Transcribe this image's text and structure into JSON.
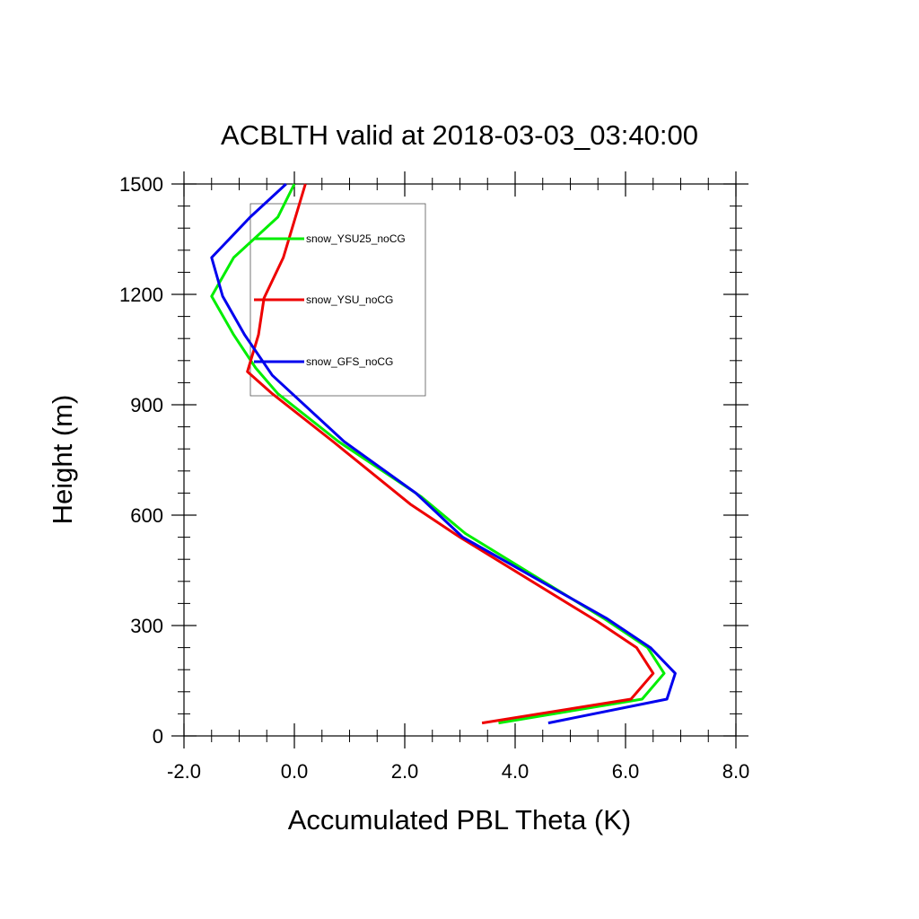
{
  "chart_data": {
    "type": "line",
    "title": "ACBLTH valid at 2018-03-03_03:40:00",
    "xlabel": "Accumulated PBL Theta (K)",
    "ylabel": "Height (m)",
    "xlim": [
      -2.0,
      8.0
    ],
    "ylim": [
      0,
      1500
    ],
    "xticks": [
      "-2.0",
      "0.0",
      "2.0",
      "4.0",
      "6.0",
      "8.0"
    ],
    "yticks": [
      "0",
      "300",
      "600",
      "900",
      "1200",
      "1500"
    ],
    "legend_position": "top-left",
    "series": [
      {
        "name": "snow_YSU25_noCG",
        "color": "#00ee00",
        "points": [
          [
            3.7,
            35
          ],
          [
            6.3,
            100
          ],
          [
            6.7,
            170
          ],
          [
            6.4,
            240
          ],
          [
            5.6,
            320
          ],
          [
            3.1,
            550
          ],
          [
            2.3,
            650
          ],
          [
            0.8,
            800
          ],
          [
            -0.3,
            930
          ],
          [
            -0.7,
            1000
          ],
          [
            -1.1,
            1090
          ],
          [
            -1.5,
            1195
          ],
          [
            -1.1,
            1300
          ],
          [
            -0.3,
            1410
          ],
          [
            0.0,
            1500
          ]
        ]
      },
      {
        "name": "snow_YSU_noCG",
        "color": "#ee0000",
        "points": [
          [
            3.4,
            35
          ],
          [
            6.1,
            100
          ],
          [
            6.5,
            170
          ],
          [
            6.2,
            240
          ],
          [
            5.5,
            310
          ],
          [
            3.0,
            540
          ],
          [
            2.1,
            630
          ],
          [
            0.7,
            800
          ],
          [
            -0.4,
            930
          ],
          [
            -0.85,
            990
          ],
          [
            -0.65,
            1090
          ],
          [
            -0.55,
            1190
          ],
          [
            -0.2,
            1300
          ],
          [
            0.0,
            1400
          ],
          [
            0.2,
            1500
          ]
        ]
      },
      {
        "name": "snow_GFS_noCG",
        "color": "#0000ee",
        "points": [
          [
            4.6,
            35
          ],
          [
            6.75,
            100
          ],
          [
            6.9,
            170
          ],
          [
            6.45,
            240
          ],
          [
            5.65,
            320
          ],
          [
            3.05,
            540
          ],
          [
            2.2,
            660
          ],
          [
            0.9,
            800
          ],
          [
            -0.4,
            980
          ],
          [
            -0.9,
            1090
          ],
          [
            -1.3,
            1195
          ],
          [
            -1.5,
            1300
          ],
          [
            -0.8,
            1410
          ],
          [
            -0.15,
            1500
          ]
        ]
      }
    ]
  }
}
